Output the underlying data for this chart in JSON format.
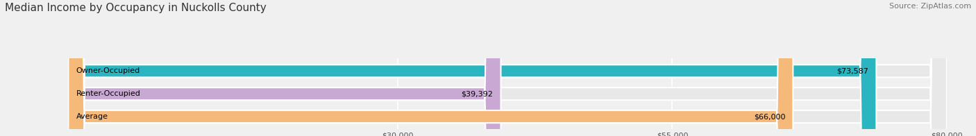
{
  "title": "Median Income by Occupancy in Nuckolls County",
  "source": "Source: ZipAtlas.com",
  "categories": [
    "Owner-Occupied",
    "Renter-Occupied",
    "Average"
  ],
  "values": [
    73587,
    39392,
    66000
  ],
  "bar_colors": [
    "#2ab5c1",
    "#c9a8d4",
    "#f5b97a"
  ],
  "bar_labels": [
    "$73,587",
    "$39,392",
    "$66,000"
  ],
  "xlim": [
    0,
    80000
  ],
  "xticks": [
    30000,
    55000,
    80000
  ],
  "xtick_labels": [
    "$30,000",
    "$55,000",
    "$80,000"
  ],
  "background_color": "#f0f0f0",
  "bar_bg_color": "#e8e8e8",
  "title_fontsize": 11,
  "source_fontsize": 8,
  "label_fontsize": 8,
  "bar_height": 0.55
}
